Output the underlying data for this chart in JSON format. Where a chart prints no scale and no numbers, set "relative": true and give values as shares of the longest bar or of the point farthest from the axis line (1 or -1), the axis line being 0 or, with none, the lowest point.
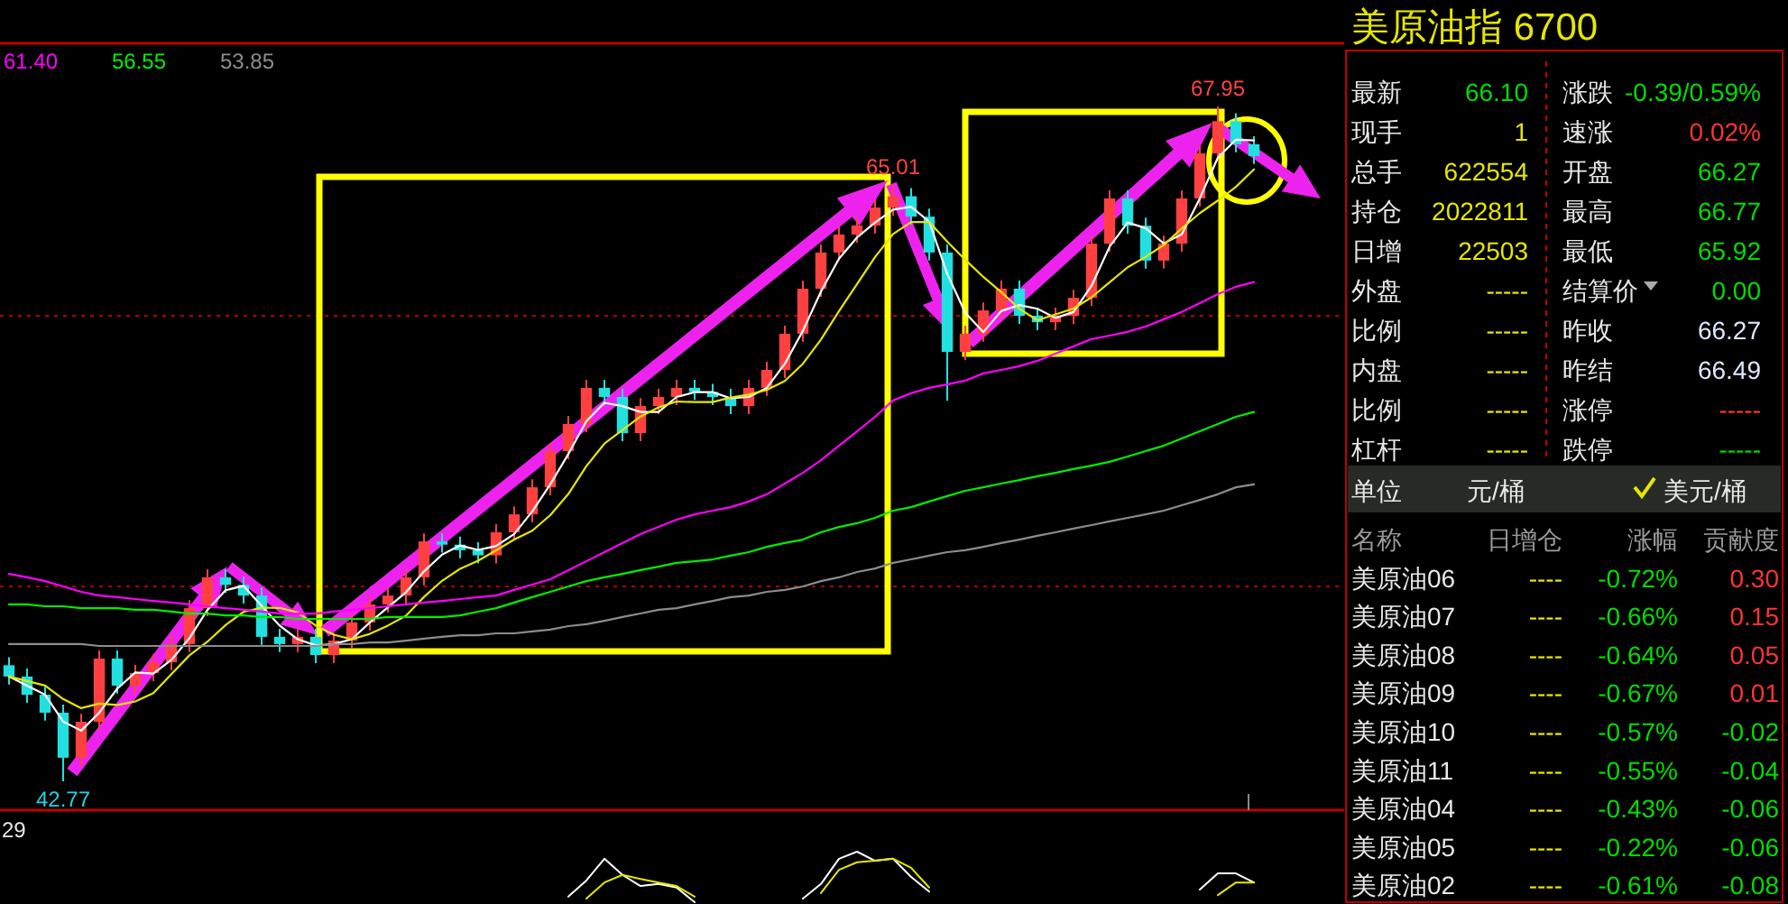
{
  "chart_data": [
    {
      "type": "candlestick",
      "categories": [
        null,
        null,
        null,
        null,
        null,
        null,
        null,
        null,
        null,
        null,
        null,
        null,
        null,
        null,
        null,
        null,
        null,
        null,
        null,
        null,
        null,
        null,
        null,
        null,
        null,
        null,
        null,
        null,
        null,
        null,
        null,
        null,
        null,
        null,
        null,
        null,
        null,
        null,
        null,
        null,
        null,
        null,
        null,
        null,
        null,
        null,
        null,
        null,
        null,
        null,
        null,
        null,
        null,
        null,
        null,
        null,
        null,
        null,
        null,
        null,
        null,
        null,
        null,
        null,
        null,
        null,
        null,
        null,
        null,
        null
      ],
      "ohlc": [
        [
          47.1,
          47.4,
          46.38,
          46.68
        ],
        [
          46.68,
          46.98,
          45.7,
          46.0
        ],
        [
          46.0,
          46.3,
          45.03,
          45.33
        ],
        [
          45.33,
          45.63,
          42.77,
          43.65
        ],
        [
          43.65,
          45.29,
          43.35,
          44.99
        ],
        [
          44.99,
          47.65,
          44.69,
          47.35
        ],
        [
          47.35,
          47.65,
          46.04,
          46.34
        ],
        [
          46.34,
          47.11,
          46.04,
          46.81
        ],
        [
          46.81,
          47.51,
          46.51,
          47.21
        ],
        [
          47.21,
          48.19,
          46.91,
          47.89
        ],
        [
          47.89,
          49.53,
          47.59,
          49.23
        ],
        [
          49.23,
          50.68,
          48.93,
          50.38
        ],
        [
          50.38,
          50.68,
          49.8,
          50.1
        ],
        [
          50.1,
          50.4,
          49.4,
          49.7
        ],
        [
          49.7,
          50.0,
          47.86,
          48.16
        ],
        [
          48.16,
          48.46,
          47.59,
          47.89
        ],
        [
          47.89,
          48.46,
          47.59,
          48.16
        ],
        [
          48.16,
          48.46,
          47.18,
          47.48
        ],
        [
          47.48,
          48.32,
          47.18,
          48.02
        ],
        [
          48.02,
          49.0,
          47.72,
          48.7
        ],
        [
          48.7,
          49.67,
          48.4,
          49.37
        ],
        [
          49.37,
          50.0,
          49.07,
          49.7
        ],
        [
          49.7,
          50.68,
          49.4,
          50.38
        ],
        [
          50.38,
          52.02,
          50.08,
          51.72
        ],
        [
          51.72,
          52.02,
          51.3,
          51.6
        ],
        [
          51.6,
          51.9,
          51.09,
          51.39
        ],
        [
          51.39,
          51.69,
          50.9,
          51.2
        ],
        [
          51.2,
          52.36,
          50.9,
          52.06
        ],
        [
          52.06,
          53.03,
          51.76,
          52.73
        ],
        [
          52.73,
          54.04,
          52.43,
          53.74
        ],
        [
          53.74,
          55.39,
          53.44,
          55.09
        ],
        [
          55.09,
          56.4,
          54.79,
          56.1
        ],
        [
          56.1,
          57.75,
          55.8,
          57.45
        ],
        [
          57.45,
          57.75,
          56.81,
          57.11
        ],
        [
          57.11,
          57.41,
          55.46,
          55.76
        ],
        [
          55.76,
          57.07,
          55.46,
          56.77
        ],
        [
          56.77,
          57.41,
          56.47,
          57.11
        ],
        [
          57.11,
          57.75,
          56.81,
          57.45
        ],
        [
          57.45,
          57.75,
          57.0,
          57.3
        ],
        [
          57.3,
          57.6,
          56.81,
          57.11
        ],
        [
          57.11,
          57.41,
          56.47,
          56.77
        ],
        [
          56.77,
          57.75,
          56.47,
          57.45
        ],
        [
          57.45,
          58.42,
          57.15,
          58.12
        ],
        [
          58.12,
          59.77,
          57.82,
          59.47
        ],
        [
          59.47,
          61.45,
          59.17,
          61.15
        ],
        [
          61.15,
          62.8,
          60.85,
          62.5
        ],
        [
          62.5,
          63.47,
          62.2,
          63.17
        ],
        [
          63.17,
          63.81,
          62.87,
          63.51
        ],
        [
          63.51,
          64.48,
          63.21,
          64.18
        ],
        [
          64.18,
          65.01,
          63.88,
          64.6
        ],
        [
          64.6,
          64.9,
          63.54,
          63.84
        ],
        [
          63.84,
          64.14,
          62.2,
          62.5
        ],
        [
          62.5,
          62.8,
          56.97,
          58.79
        ],
        [
          58.79,
          59.77,
          58.49,
          59.47
        ],
        [
          59.47,
          60.64,
          59.17,
          60.34
        ],
        [
          60.34,
          61.45,
          60.04,
          61.15
        ],
        [
          61.15,
          61.45,
          59.84,
          60.14
        ],
        [
          60.14,
          60.44,
          59.6,
          59.9
        ],
        [
          59.9,
          60.44,
          59.6,
          60.14
        ],
        [
          60.14,
          61.11,
          59.84,
          60.81
        ],
        [
          60.81,
          63.13,
          60.51,
          62.83
        ],
        [
          62.83,
          64.82,
          62.53,
          64.52
        ],
        [
          64.52,
          64.82,
          63.2,
          63.5
        ],
        [
          63.5,
          63.8,
          61.9,
          62.2
        ],
        [
          62.2,
          63.13,
          61.9,
          62.83
        ],
        [
          62.83,
          64.82,
          62.53,
          64.52
        ],
        [
          64.52,
          66.5,
          64.22,
          66.2
        ],
        [
          66.2,
          67.95,
          65.9,
          67.4
        ],
        [
          67.4,
          67.7,
          66.24,
          66.54
        ],
        [
          66.54,
          66.84,
          65.8,
          66.1
        ]
      ],
      "series": [
        {
          "type": "line",
          "color": "#ffffff",
          "values": [
            46.68,
            46.34,
            46.0,
            45.0,
            44.66,
            45.33,
            46.23,
            46.83,
            46.79,
            47.3,
            48.11,
            49.17,
            49.9,
            50.06,
            49.32,
            48.58,
            48.07,
            47.84,
            47.89,
            48.07,
            48.7,
            49.26,
            49.82,
            50.6,
            51.23,
            51.57,
            51.4,
            51.55,
            52.0,
            52.84,
            53.85,
            54.98,
            56.21,
            56.89,
            56.77,
            56.55,
            56.55,
            57.11,
            57.29,
            57.29,
            57.06,
            57.11,
            57.45,
            58.35,
            59.58,
            61.04,
            62.27,
            63.06,
            63.62,
            64.1,
            64.21,
            63.65,
            61.71,
            60.25,
            59.53,
            60.32,
            60.54,
            60.4,
            60.06,
            60.28,
            61.26,
            62.72,
            63.62,
            63.41,
            62.84,
            63.18,
            64.52,
            66.04,
            66.71,
            66.68
          ]
        },
        {
          "type": "line",
          "color": "#e6e600",
          "values": [
            46.68,
            46.51,
            46.34,
            45.84,
            45.5,
            45.67,
            45.62,
            45.75,
            46.06,
            46.77,
            47.47,
            47.98,
            48.6,
            49.09,
            49.25,
            49.24,
            49.07,
            48.58,
            48.24,
            48.07,
            48.27,
            48.58,
            48.95,
            49.65,
            50.25,
            50.7,
            51.0,
            51.39,
            51.79,
            52.12,
            52.7,
            53.49,
            54.53,
            55.37,
            55.88,
            56.38,
            56.72,
            56.94,
            56.92,
            56.92,
            57.09,
            57.2,
            57.37,
            57.71,
            58.35,
            59.25,
            60.31,
            61.32,
            62.33,
            63.19,
            63.64,
            63.64,
            62.91,
            62.23,
            61.59,
            61.02,
            60.4,
            59.97,
            60.19,
            60.41,
            60.83,
            61.39,
            61.95,
            62.34,
            62.78,
            63.4,
            63.97,
            64.44,
            64.95,
            65.6
          ]
        },
        {
          "type": "line",
          "name": "61.40",
          "color": "#ff00ff",
          "values": [
            50.51,
            50.38,
            50.24,
            50.04,
            49.84,
            49.7,
            49.64,
            49.57,
            49.5,
            49.44,
            49.37,
            49.3,
            49.23,
            49.17,
            49.1,
            49.03,
            49.03,
            49.03,
            49.1,
            49.17,
            49.23,
            49.3,
            49.37,
            49.44,
            49.5,
            49.57,
            49.64,
            49.7,
            49.91,
            50.11,
            50.31,
            50.65,
            50.98,
            51.32,
            51.66,
            51.99,
            52.26,
            52.53,
            52.73,
            52.87,
            53.0,
            53.21,
            53.48,
            53.88,
            54.28,
            54.75,
            55.29,
            55.83,
            56.37,
            56.98,
            57.25,
            57.45,
            57.58,
            57.72,
            57.99,
            58.12,
            58.26,
            58.46,
            58.73,
            59.0,
            59.27,
            59.4,
            59.54,
            59.74,
            60.01,
            60.28,
            60.61,
            60.95,
            61.22,
            61.4
          ]
        },
        {
          "type": "line",
          "name": "56.55",
          "color": "#00ee00",
          "values": [
            49.37,
            49.37,
            49.3,
            49.3,
            49.23,
            49.23,
            49.23,
            49.17,
            49.17,
            49.1,
            49.03,
            49.03,
            48.96,
            48.96,
            48.9,
            48.9,
            48.83,
            48.83,
            48.83,
            48.83,
            48.83,
            48.9,
            48.9,
            48.9,
            48.9,
            48.96,
            49.1,
            49.23,
            49.44,
            49.64,
            49.84,
            50.04,
            50.24,
            50.38,
            50.51,
            50.65,
            50.78,
            50.92,
            50.98,
            51.05,
            51.19,
            51.32,
            51.52,
            51.66,
            51.79,
            52.06,
            52.26,
            52.4,
            52.6,
            52.87,
            53.0,
            53.21,
            53.41,
            53.61,
            53.74,
            53.88,
            54.01,
            54.15,
            54.28,
            54.42,
            54.55,
            54.69,
            54.89,
            55.09,
            55.29,
            55.56,
            55.83,
            56.1,
            56.37,
            56.55
          ]
        },
        {
          "type": "line",
          "name": "53.85",
          "color": "#8c8c8c",
          "values": [
            47.89,
            47.89,
            47.89,
            47.89,
            47.89,
            47.82,
            47.82,
            47.82,
            47.82,
            47.82,
            47.82,
            47.82,
            47.82,
            47.82,
            47.82,
            47.82,
            47.82,
            47.82,
            47.89,
            47.89,
            47.95,
            47.95,
            48.02,
            48.09,
            48.16,
            48.22,
            48.22,
            48.29,
            48.29,
            48.36,
            48.43,
            48.56,
            48.63,
            48.76,
            48.9,
            49.03,
            49.17,
            49.23,
            49.37,
            49.5,
            49.64,
            49.7,
            49.84,
            49.91,
            50.04,
            50.24,
            50.38,
            50.58,
            50.71,
            50.92,
            51.05,
            51.19,
            51.32,
            51.39,
            51.52,
            51.66,
            51.79,
            51.93,
            52.06,
            52.2,
            52.33,
            52.47,
            52.6,
            52.73,
            52.87,
            53.07,
            53.27,
            53.48,
            53.74,
            53.85
          ]
        }
      ],
      "ref_lines": [
        {
          "axis": "y",
          "value": 60.14,
          "color": "#b00000",
          "line_style": "dotted"
        },
        {
          "axis": "y",
          "value": 50.04,
          "color": "#b00000",
          "line_style": "dotted"
        }
      ],
      "annotations": [
        {
          "text": "67.95",
          "y": 67.95
        },
        {
          "text": "65.01",
          "y": 65.01
        },
        {
          "text": "42.77",
          "y": 42.77
        }
      ]
    },
    {
      "type": "other",
      "title": "美原油指  6700",
      "annotations": [
        "最新",
        "66.10",
        "涨跌",
        "-0.39/0.59%",
        "现手",
        "1",
        "速涨",
        "0.02%",
        "总手",
        "622554",
        "开盘",
        "66.27",
        "持仓",
        "2022811",
        "最高",
        "66.77",
        "日增",
        "22503",
        "最低",
        "65.92",
        "外盘",
        "-----",
        "结算价",
        "0.00",
        "比例",
        "-----",
        "昨收",
        "66.27",
        "内盘",
        "-----",
        "昨结",
        "66.49",
        "比例",
        "-----",
        "涨停",
        "-----",
        "杠杆",
        "-----",
        "跌停",
        "-----",
        "单位",
        "元/桶",
        "美元/桶",
        "名称",
        "日增仓",
        "涨幅",
        "贡献度",
        "美原油06",
        "----",
        "-0.72%",
        "0.30",
        "美原油07",
        "----",
        "-0.66%",
        "0.15",
        "美原油08",
        "----",
        "-0.64%",
        "0.05",
        "美原油09",
        "----",
        "-0.67%",
        "0.01",
        "美原油10",
        "----",
        "-0.57%",
        "-0.02",
        "美原油11",
        "----",
        "-0.55%",
        "-0.04",
        "美原油04",
        "----",
        "-0.43%",
        "-0.06",
        "美原油05",
        "----",
        "-0.22%",
        "-0.06",
        "美原油02",
        "----",
        "-0.61%",
        "-0.08"
      ],
      "colors": [
        "#e8e8e8",
        "#00dd00",
        "#e8e8e8",
        "#00dd00",
        "#e8e8e8",
        "#e6e600",
        "#e8e8e8",
        "#ff3333",
        "#e8e8e8",
        "#e6e600",
        "#e8e8e8",
        "#00dd00",
        "#e8e8e8",
        "#e6e600",
        "#e8e8e8",
        "#00dd00",
        "#e8e8e8",
        "#e6e600",
        "#e8e8e8",
        "#00dd00",
        "#e8e8e8",
        "#e6e600",
        "#e8e8e8",
        "#00dd00",
        "#e8e8e8",
        "#e6e600",
        "#e8e8e8",
        "#dde8ff",
        "#e8e8e8",
        "#e6e600",
        "#e8e8e8",
        "#dde8ff",
        "#e8e8e8",
        "#e6e600",
        "#e8e8e8",
        "#ff3333",
        "#e8e8e8",
        "#e6e600",
        "#e8e8e8",
        "#00dd00",
        "#e8e8e8",
        "#e8e8e8",
        "#e8e8e8",
        "#9a9a9a",
        "#9a9a9a",
        "#9a9a9a",
        "#9a9a9a",
        "#e8e8e8",
        "#e6e600",
        "#00dd00",
        "#ff3333",
        "#e8e8e8",
        "#e6e600",
        "#00dd00",
        "#ff3333",
        "#e8e8e8",
        "#e6e600",
        "#00dd00",
        "#ff3333",
        "#e8e8e8",
        "#e6e600",
        "#00dd00",
        "#ff3333",
        "#e8e8e8",
        "#e6e600",
        "#00dd00",
        "#00dd00",
        "#e8e8e8",
        "#e6e600",
        "#00dd00",
        "#00dd00",
        "#e8e8e8",
        "#e6e600",
        "#00dd00",
        "#00dd00",
        "#e8e8e8",
        "#e6e600",
        "#00dd00",
        "#00dd00",
        "#e8e8e8",
        "#e6e600",
        "#00dd00",
        "#00dd00"
      ]
    },
    {
      "type": "line",
      "relative": true,
      "categories": [
        null,
        null,
        null,
        null,
        null,
        null,
        null,
        null,
        null,
        null,
        null,
        null,
        null,
        null,
        null,
        null,
        null,
        null,
        null,
        null,
        null,
        null,
        null,
        null,
        null,
        null,
        null,
        null,
        null,
        null,
        null,
        null,
        null,
        null,
        null,
        null,
        null,
        null,
        null,
        null,
        null,
        null,
        null,
        null,
        null,
        null,
        null,
        null,
        null,
        null,
        null,
        null,
        null,
        null,
        null,
        null,
        null,
        null,
        null,
        null,
        null,
        null,
        null,
        null,
        null,
        null,
        null,
        null,
        null,
        null
      ],
      "series": [
        {
          "color": "#ffffff",
          "values": [
            null,
            null,
            null,
            null,
            null,
            null,
            null,
            null,
            null,
            null,
            null,
            null,
            null,
            null,
            null,
            null,
            null,
            null,
            null,
            null,
            null,
            null,
            null,
            null,
            null,
            null,
            null,
            null,
            null,
            null,
            null,
            0.11,
            0.43,
            0.86,
            0.54,
            0.32,
            0.36,
            0.29,
            0,
            null,
            null,
            null,
            null,
            null,
            0.07,
            0.36,
            0.86,
            1,
            0.82,
            0.86,
            0.5,
            0.21,
            null,
            null,
            null,
            null,
            null,
            null,
            null,
            null,
            null,
            null,
            null,
            null,
            null,
            null,
            0.25,
            0.57,
            0.57,
            0.39
          ]
        },
        {
          "color": "#e6e600",
          "values": [
            null,
            null,
            null,
            null,
            null,
            null,
            null,
            null,
            null,
            null,
            null,
            null,
            null,
            null,
            null,
            null,
            null,
            null,
            null,
            null,
            null,
            null,
            null,
            null,
            null,
            null,
            null,
            null,
            null,
            null,
            null,
            null,
            0.07,
            0.39,
            0.54,
            0.46,
            0.39,
            0.32,
            0.11,
            null,
            null,
            null,
            null,
            null,
            null,
            0.18,
            0.64,
            0.79,
            0.82,
            0.86,
            0.68,
            0.29,
            null,
            null,
            null,
            null,
            null,
            null,
            null,
            null,
            null,
            null,
            null,
            null,
            null,
            null,
            null,
            0.14,
            0.39,
            0.39
          ]
        }
      ],
      "annotations": [
        "29"
      ]
    }
  ]
}
